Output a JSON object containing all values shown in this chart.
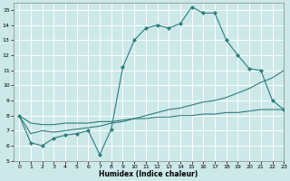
{
  "title": "",
  "xlabel": "Humidex (Indice chaleur)",
  "ylabel": "",
  "xlim": [
    -0.5,
    23
  ],
  "ylim": [
    5,
    15.5
  ],
  "yticks": [
    5,
    6,
    7,
    8,
    9,
    10,
    11,
    12,
    13,
    14,
    15
  ],
  "xticks": [
    0,
    1,
    2,
    3,
    4,
    5,
    6,
    7,
    8,
    9,
    10,
    11,
    12,
    13,
    14,
    15,
    16,
    17,
    18,
    19,
    20,
    21,
    22,
    23
  ],
  "bg_color": "#cce8e8",
  "line_color": "#2d7d7d",
  "grid_color": "#ffffff",
  "series_main_x": [
    0,
    1,
    2,
    3,
    4,
    5,
    6,
    7,
    8,
    9,
    10,
    11,
    12,
    13,
    14,
    15,
    16,
    17,
    18,
    19,
    20,
    21,
    22,
    23
  ],
  "series_main_y": [
    8.0,
    6.2,
    6.0,
    6.5,
    6.7,
    6.8,
    7.0,
    5.4,
    7.1,
    11.2,
    13.0,
    13.8,
    14.0,
    13.8,
    14.1,
    15.2,
    14.8,
    14.8,
    13.0,
    12.0,
    11.1,
    11.0,
    9.0,
    8.4
  ],
  "series_line2_x": [
    0,
    1,
    2,
    3,
    4,
    5,
    6,
    7,
    8,
    9,
    10,
    11,
    12,
    13,
    14,
    15,
    16,
    17,
    18,
    19,
    20,
    21,
    22,
    23
  ],
  "series_line2_y": [
    8.0,
    6.8,
    7.0,
    6.9,
    7.0,
    7.1,
    7.2,
    7.3,
    7.5,
    7.6,
    7.8,
    8.0,
    8.2,
    8.4,
    8.5,
    8.7,
    8.9,
    9.0,
    9.2,
    9.5,
    9.8,
    10.2,
    10.5,
    11.0
  ],
  "series_line3_x": [
    0,
    1,
    2,
    3,
    4,
    5,
    6,
    7,
    8,
    9,
    10,
    11,
    12,
    13,
    14,
    15,
    16,
    17,
    18,
    19,
    20,
    21,
    22,
    23
  ],
  "series_line3_y": [
    8.0,
    7.5,
    7.4,
    7.4,
    7.5,
    7.5,
    7.5,
    7.6,
    7.6,
    7.7,
    7.8,
    7.8,
    7.9,
    7.9,
    8.0,
    8.0,
    8.1,
    8.1,
    8.2,
    8.2,
    8.3,
    8.4,
    8.4,
    8.4
  ]
}
